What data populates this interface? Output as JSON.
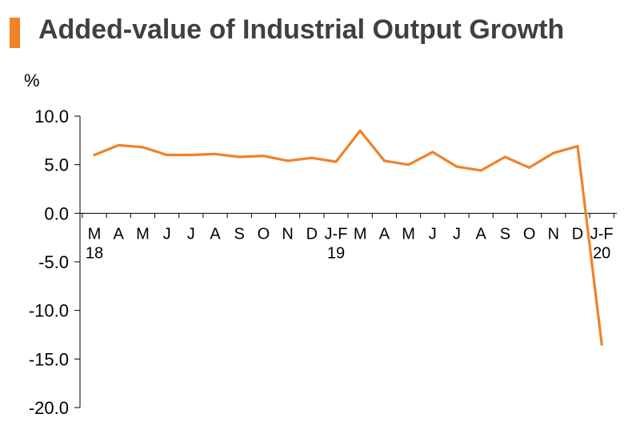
{
  "header": {
    "title": "Added-value of Industrial Output Growth",
    "accent_color": "#F08226"
  },
  "chart_data": {
    "type": "line",
    "title": "Added-value of Industrial Output Growth",
    "ylabel": "%",
    "xlabel": "",
    "categories": [
      "M",
      "A",
      "M",
      "J",
      "J",
      "A",
      "S",
      "O",
      "N",
      "D",
      "J-F",
      "M",
      "A",
      "M",
      "J",
      "J",
      "A",
      "S",
      "O",
      "N",
      "D",
      "J-F"
    ],
    "year_labels": [
      {
        "index": 0,
        "label": "18"
      },
      {
        "index": 10,
        "label": "19"
      },
      {
        "index": 21,
        "label": "20"
      }
    ],
    "series": [
      {
        "color": "#F08226",
        "values": [
          6.0,
          7.0,
          6.8,
          6.0,
          6.0,
          6.1,
          5.8,
          5.9,
          5.4,
          5.7,
          5.3,
          8.5,
          5.4,
          5.0,
          6.3,
          4.8,
          4.4,
          5.8,
          4.7,
          6.2,
          6.9,
          -13.5
        ]
      }
    ],
    "ylim": [
      -20,
      10
    ],
    "yticks": [
      "10.0",
      "5.0",
      "0.0",
      "-5.0",
      "-10.0",
      "-15.0",
      "-20.0"
    ],
    "grid": false
  }
}
